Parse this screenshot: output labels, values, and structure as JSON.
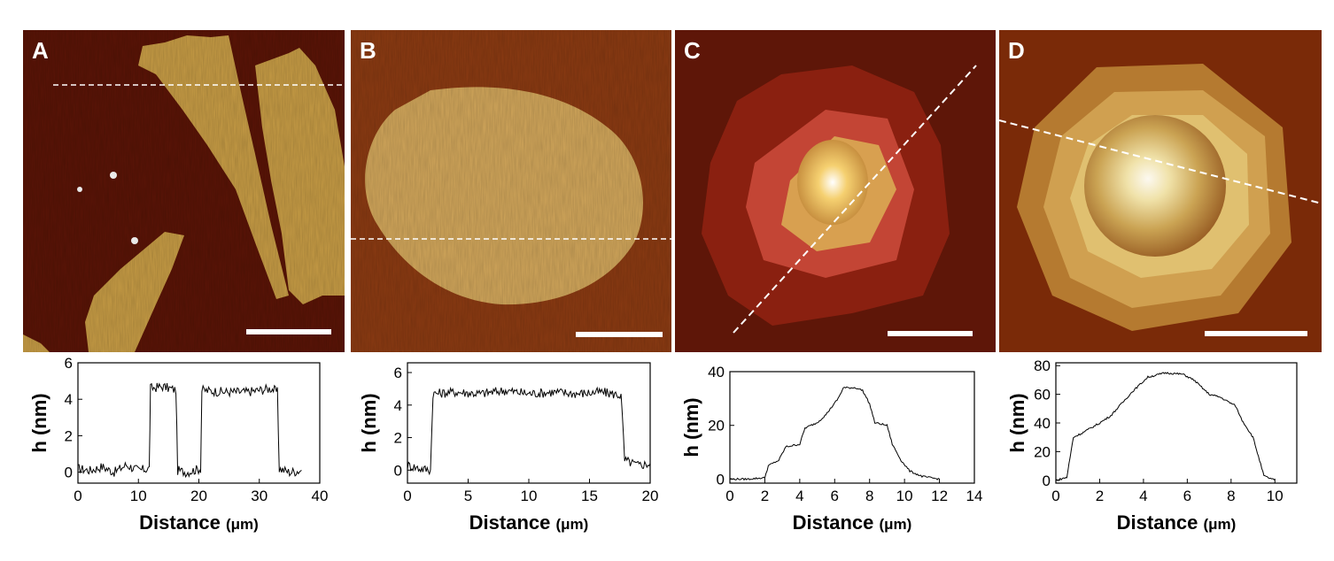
{
  "figure": {
    "panels": [
      {
        "label": "A"
      },
      {
        "label": "B"
      },
      {
        "label": "C"
      },
      {
        "label": "D"
      }
    ],
    "colors": {
      "substrate": "#5a1406",
      "crystal": "#c79c45",
      "highlight": "#fbf1d0",
      "scale_bar": "#ffffff"
    }
  },
  "chart_data": [
    {
      "type": "line",
      "panel": "A",
      "xlabel": "Distance",
      "xunit": "(μm)",
      "ylabel": "h (nm)",
      "xlim": [
        0,
        40
      ],
      "ylim": [
        -0.6,
        6
      ],
      "xticks": [
        0,
        10,
        20,
        30,
        40
      ],
      "yticks": [
        0,
        2,
        4,
        6
      ],
      "x": [
        0,
        2,
        4,
        6,
        8,
        10,
        11.8,
        12,
        14,
        16.2,
        16.5,
        18,
        20.3,
        20.5,
        24,
        28,
        32,
        33,
        33.3,
        35,
        37
      ],
      "y": [
        0.2,
        0.1,
        0.3,
        0.0,
        0.4,
        0.1,
        0.2,
        4.6,
        4.7,
        4.5,
        0.1,
        0.0,
        0.2,
        4.5,
        4.4,
        4.4,
        4.6,
        4.4,
        0.2,
        0.0,
        0.1
      ]
    },
    {
      "type": "line",
      "panel": "B",
      "xlabel": "Distance",
      "xunit": "(μm)",
      "ylabel": "h (nm)",
      "xlim": [
        0,
        20
      ],
      "ylim": [
        -0.8,
        6.6
      ],
      "xticks": [
        0,
        5,
        10,
        15,
        20
      ],
      "yticks": [
        0,
        2,
        4,
        6
      ],
      "x": [
        0,
        1,
        1.9,
        2.1,
        4,
        6,
        8,
        10,
        12,
        14,
        16,
        17.6,
        17.9,
        19,
        20
      ],
      "y": [
        0.3,
        0.1,
        0.0,
        4.7,
        4.8,
        4.7,
        4.9,
        4.7,
        4.8,
        4.7,
        4.8,
        4.6,
        0.6,
        0.3,
        0.4
      ]
    },
    {
      "type": "line",
      "panel": "C",
      "xlabel": "Distance",
      "xunit": "(μm)",
      "ylabel": "h (nm)",
      "xlim": [
        0,
        14
      ],
      "ylim": [
        -1.5,
        40
      ],
      "xticks": [
        0,
        2,
        4,
        6,
        8,
        10,
        12,
        14
      ],
      "yticks": [
        0,
        20,
        40
      ],
      "x": [
        0,
        1,
        2,
        2.2,
        2.8,
        3.2,
        4,
        4.3,
        5,
        5.5,
        6.2,
        6.5,
        7.2,
        7.6,
        8,
        8.3,
        9,
        9.3,
        9.8,
        10.3,
        11,
        12
      ],
      "y": [
        0,
        0,
        0.5,
        5,
        7,
        12,
        13,
        19,
        21,
        24,
        30,
        34,
        34,
        33,
        28,
        21,
        20,
        13,
        7,
        3,
        1,
        0
      ]
    },
    {
      "type": "line",
      "panel": "D",
      "xlabel": "Distance",
      "xunit": "(μm)",
      "ylabel": "h (nm)",
      "xlim": [
        0,
        11
      ],
      "ylim": [
        -2,
        82
      ],
      "xticks": [
        0,
        2,
        4,
        6,
        8,
        10
      ],
      "yticks": [
        0,
        20,
        40,
        60,
        80
      ],
      "x": [
        0,
        0.5,
        0.8,
        1.2,
        2,
        2.5,
        3.5,
        4.2,
        5,
        5.8,
        6.3,
        7,
        7.5,
        8.2,
        8.5,
        9,
        9.5,
        10
      ],
      "y": [
        0,
        2,
        30,
        33,
        40,
        45,
        62,
        72,
        75,
        74,
        70,
        60,
        58,
        52,
        42,
        30,
        3,
        0
      ]
    }
  ]
}
